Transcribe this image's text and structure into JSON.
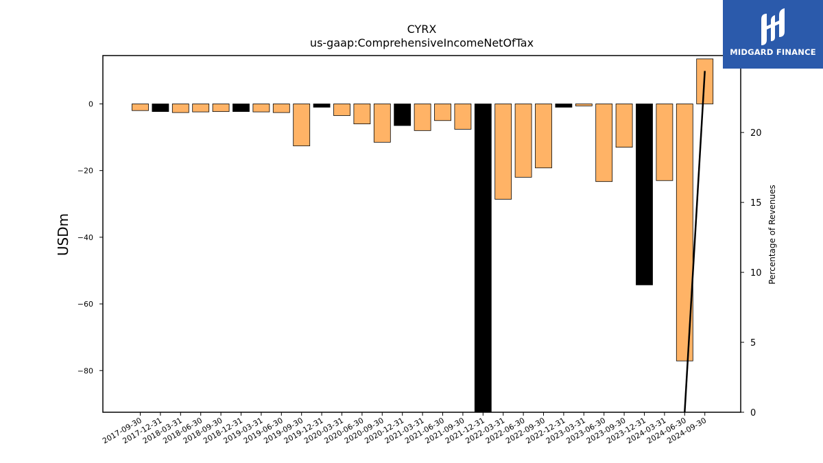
{
  "brand": {
    "name": "MIDGARD FINANCE",
    "background_color": "#2b5aab",
    "icon": "midgard-logo-icon"
  },
  "chart_data": {
    "type": "bar",
    "title": "CYRX",
    "subtitle": "us-gaap:ComprehensiveIncomeNetOfTax",
    "ylabel": "USDm",
    "y2label": "Percentage of Revenues",
    "ylim": [
      -92.5,
      14.5
    ],
    "y2lim": [
      0,
      25.5
    ],
    "yticks": [
      0,
      -20,
      -40,
      -60,
      -80
    ],
    "y2ticks": [
      0,
      5,
      10,
      15,
      20
    ],
    "categories": [
      "2017-09-30",
      "2017-12-31",
      "2018-03-31",
      "2018-06-30",
      "2018-09-30",
      "2018-12-31",
      "2019-03-31",
      "2019-06-30",
      "2019-09-30",
      "2019-12-31",
      "2020-03-31",
      "2020-06-30",
      "2020-09-30",
      "2020-12-31",
      "2021-03-31",
      "2021-06-30",
      "2021-09-30",
      "2021-12-31",
      "2022-03-31",
      "2022-06-30",
      "2022-09-30",
      "2022-12-31",
      "2023-03-31",
      "2023-06-30",
      "2023-09-30",
      "2023-12-31",
      "2024-03-31",
      "2024-06-30",
      "2024-09-30"
    ],
    "values": [
      -2.0,
      -2.3,
      -2.6,
      -2.4,
      -2.3,
      -2.3,
      -2.4,
      -2.6,
      -12.6,
      -1.0,
      -3.5,
      -6.0,
      -11.5,
      -6.5,
      -8.0,
      -5.0,
      -7.6,
      -92.5,
      -28.6,
      -22.0,
      -19.2,
      -1.0,
      -0.6,
      -23.3,
      -13.0,
      -54.3,
      -23.0,
      -77.1,
      13.5
    ],
    "bar_colors": [
      "#ffb366",
      "#000000",
      "#ffb366",
      "#ffb366",
      "#ffb366",
      "#000000",
      "#ffb366",
      "#ffb366",
      "#ffb366",
      "#000000",
      "#ffb366",
      "#ffb366",
      "#ffb366",
      "#000000",
      "#ffb366",
      "#ffb366",
      "#ffb366",
      "#000000",
      "#ffb366",
      "#ffb366",
      "#ffb366",
      "#000000",
      "#ffb366",
      "#ffb366",
      "#ffb366",
      "#000000",
      "#ffb366",
      "#ffb366",
      "#ffb366"
    ],
    "line_series": {
      "axis": "right",
      "color": "#000000",
      "points": [
        {
          "x": "2024-06-30",
          "y": 0.0
        },
        {
          "x": "2024-09-30",
          "y": 24.4
        }
      ]
    },
    "grid": false,
    "legend": "none"
  }
}
